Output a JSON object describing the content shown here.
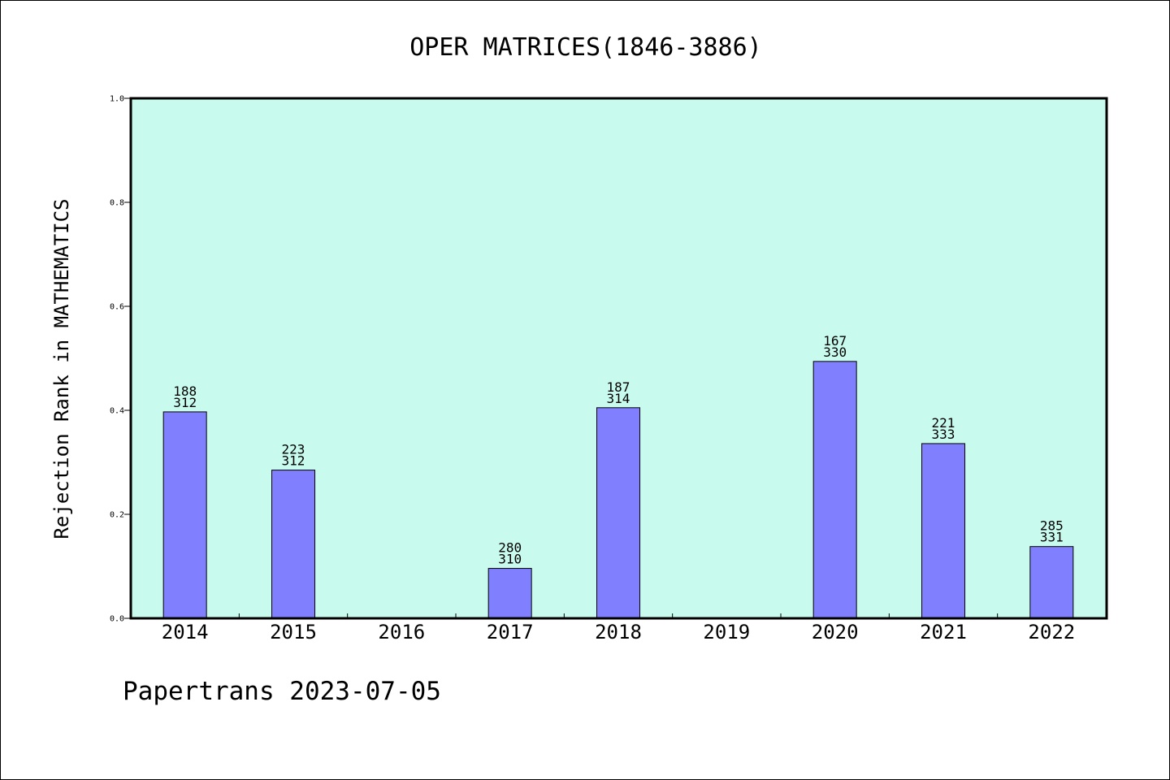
{
  "chart_data": {
    "type": "bar",
    "title": "OPER MATRICES(1846-3886)",
    "xlabel": "",
    "ylabel": "Rejection Rank in MATHEMATICS",
    "ylim": [
      0,
      1.0
    ],
    "yticks": [
      "0.0",
      "0.2",
      "0.4",
      "0.6",
      "0.8",
      "1.0"
    ],
    "categories": [
      "2014",
      "2015",
      "2016",
      "2017",
      "2018",
      "2019",
      "2020",
      "2021",
      "2022"
    ],
    "values": [
      0.397,
      0.285,
      null,
      0.096,
      0.405,
      null,
      0.494,
      0.336,
      0.138
    ],
    "labels": [
      {
        "top": "188",
        "bottom": "312"
      },
      {
        "top": "223",
        "bottom": "312"
      },
      null,
      {
        "top": "280",
        "bottom": "310"
      },
      {
        "top": "187",
        "bottom": "314"
      },
      null,
      {
        "top": "167",
        "bottom": "330"
      },
      {
        "top": "221",
        "bottom": "333"
      },
      {
        "top": "285",
        "bottom": "331"
      }
    ],
    "grid": false,
    "plot_background": "#c8fbee",
    "bar_color": "#8080ff"
  },
  "footer": "Papertrans 2023-07-05"
}
